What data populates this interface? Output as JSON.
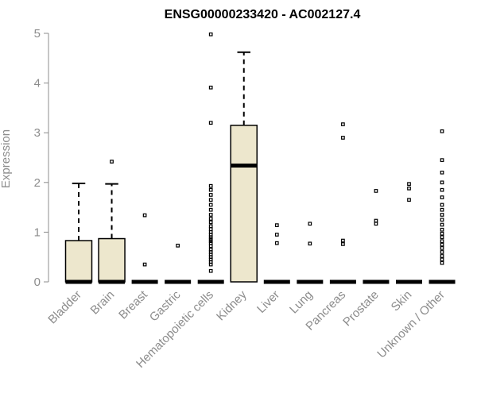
{
  "chart_data": {
    "type": "boxplot",
    "title": "ENSG00000233420 - AC002127.4",
    "ylabel": "Expression",
    "xlabel": "",
    "ylim": [
      0,
      5
    ],
    "yticks": [
      0,
      1,
      2,
      3,
      4,
      5
    ],
    "grid": false,
    "legend": "none",
    "box_color": "#ede7cd",
    "categories": [
      "Bladder",
      "Brain",
      "Breast",
      "Gastric",
      "Hematopoietic cells",
      "Kidney",
      "Liver",
      "Lung",
      "Pancreas",
      "Prostate",
      "Skin",
      "Unknown / Other"
    ],
    "boxes": [
      {
        "category": "Bladder",
        "min": 0,
        "q1": 0,
        "median": 0,
        "q3": 0.83,
        "max": 1.98,
        "outliers": []
      },
      {
        "category": "Brain",
        "min": 0,
        "q1": 0,
        "median": 0,
        "q3": 0.87,
        "max": 1.97,
        "outliers": [
          2.42
        ]
      },
      {
        "category": "Breast",
        "min": 0,
        "q1": 0,
        "median": 0,
        "q3": 0,
        "max": 0,
        "outliers": [
          0.35,
          1.34
        ]
      },
      {
        "category": "Gastric",
        "min": 0,
        "q1": 0,
        "median": 0,
        "q3": 0,
        "max": 0,
        "outliers": [
          0.73
        ]
      },
      {
        "category": "Hematopoietic cells",
        "min": 0,
        "q1": 0,
        "median": 0,
        "q3": 0,
        "max": 0,
        "outliers": [
          0.22,
          0.35,
          0.4,
          0.45,
          0.5,
          0.55,
          0.6,
          0.65,
          0.72,
          0.78,
          0.82,
          0.86,
          0.9,
          0.95,
          1.0,
          1.06,
          1.12,
          1.2,
          1.27,
          1.35,
          1.45,
          1.55,
          1.65,
          1.75,
          1.85,
          1.93,
          3.2,
          3.91,
          4.98
        ]
      },
      {
        "category": "Kidney",
        "min": 0,
        "q1": 0,
        "median": 2.34,
        "q3": 3.15,
        "max": 4.62,
        "outliers": []
      },
      {
        "category": "Liver",
        "min": 0,
        "q1": 0,
        "median": 0,
        "q3": 0,
        "max": 0,
        "outliers": [
          0.78,
          0.95,
          1.14
        ]
      },
      {
        "category": "Lung",
        "min": 0,
        "q1": 0,
        "median": 0,
        "q3": 0,
        "max": 0,
        "outliers": [
          0.77,
          1.17
        ]
      },
      {
        "category": "Pancreas",
        "min": 0,
        "q1": 0,
        "median": 0,
        "q3": 0,
        "max": 0,
        "outliers": [
          0.76,
          0.83,
          2.9,
          3.17
        ]
      },
      {
        "category": "Prostate",
        "min": 0,
        "q1": 0,
        "median": 0,
        "q3": 0,
        "max": 0,
        "outliers": [
          1.17,
          1.23,
          1.83
        ]
      },
      {
        "category": "Skin",
        "min": 0,
        "q1": 0,
        "median": 0,
        "q3": 0,
        "max": 0,
        "outliers": [
          1.65,
          1.88,
          1.97
        ]
      },
      {
        "category": "Unknown / Other",
        "min": 0,
        "q1": 0,
        "median": 0,
        "q3": 0,
        "max": 0,
        "outliers": [
          0.38,
          0.45,
          0.52,
          0.6,
          0.68,
          0.75,
          0.82,
          0.9,
          0.97,
          1.05,
          1.15,
          1.25,
          1.35,
          1.45,
          1.55,
          1.7,
          1.85,
          2.0,
          2.2,
          2.45,
          3.03
        ]
      }
    ]
  }
}
